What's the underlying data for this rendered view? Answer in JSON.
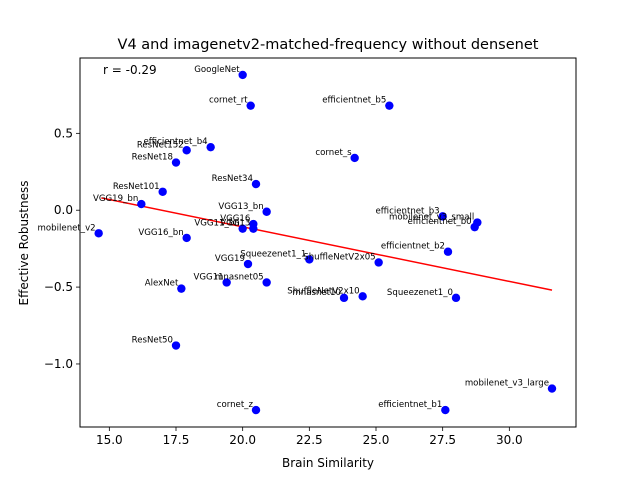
{
  "chart_data": {
    "type": "scatter",
    "title": "V4 and imagenetv2-matched-frequency without densenet",
    "xlabel": "Brain Similarity",
    "ylabel": "Effective Robustness",
    "annotation": "r = -0.29",
    "xlim": [
      13.9,
      32.5
    ],
    "ylim": [
      -1.41,
      0.99
    ],
    "xticks": [
      15.0,
      17.5,
      20.0,
      22.5,
      25.0,
      27.5,
      30.0
    ],
    "xtick_labels": [
      "15.0",
      "17.5",
      "20.0",
      "22.5",
      "25.0",
      "27.5",
      "30.0"
    ],
    "yticks": [
      -1.0,
      -0.5,
      0.0,
      0.5
    ],
    "ytick_labels": [
      "−1.0",
      "−0.5",
      "0.0",
      "0.5"
    ],
    "grid": false,
    "point_color": "#0000ff",
    "fit_color": "#ff0000",
    "fit_line": {
      "x": [
        14.7,
        31.6
      ],
      "y": [
        0.08,
        -0.52
      ]
    },
    "points": [
      {
        "label": "GoogleNet",
        "x": 20.0,
        "y": 0.88
      },
      {
        "label": "cornet_rt",
        "x": 20.3,
        "y": 0.68
      },
      {
        "label": "efficientnet_b5",
        "x": 25.5,
        "y": 0.68
      },
      {
        "label": "efficientnet_b4",
        "x": 18.8,
        "y": 0.41
      },
      {
        "label": "ResNet152",
        "x": 17.9,
        "y": 0.39
      },
      {
        "label": "ResNet18",
        "x": 17.5,
        "y": 0.31
      },
      {
        "label": "cornet_s",
        "x": 24.2,
        "y": 0.34
      },
      {
        "label": "ResNet34",
        "x": 20.5,
        "y": 0.17
      },
      {
        "label": "ResNet101",
        "x": 17.0,
        "y": 0.12
      },
      {
        "label": "VGG19_bn",
        "x": 16.2,
        "y": 0.04
      },
      {
        "label": "VGG13_bn",
        "x": 20.9,
        "y": -0.01
      },
      {
        "label": "efficientnet_b3",
        "x": 27.5,
        "y": -0.04
      },
      {
        "label": "mobilenet_v3_small",
        "x": 28.8,
        "y": -0.08
      },
      {
        "label": "efficientnet_b0",
        "x": 28.7,
        "y": -0.11
      },
      {
        "label": "VGG16",
        "x": 20.4,
        "y": -0.09
      },
      {
        "label": "VGG11_bn",
        "x": 20.0,
        "y": -0.12
      },
      {
        "label": "VGG13",
        "x": 20.4,
        "y": -0.12
      },
      {
        "label": "mobilenet_v2",
        "x": 14.6,
        "y": -0.15
      },
      {
        "label": "VGG16_bn",
        "x": 17.9,
        "y": -0.18
      },
      {
        "label": "efficientnet_b2",
        "x": 27.7,
        "y": -0.27
      },
      {
        "label": "Squeezenet1_1",
        "x": 22.5,
        "y": -0.32
      },
      {
        "label": "ShuffleNetV2x05",
        "x": 25.1,
        "y": -0.34
      },
      {
        "label": "VGG19",
        "x": 20.2,
        "y": -0.35
      },
      {
        "label": "VGG11",
        "x": 19.4,
        "y": -0.47
      },
      {
        "label": "mnasnet05",
        "x": 20.9,
        "y": -0.47
      },
      {
        "label": "AlexNet",
        "x": 17.7,
        "y": -0.51
      },
      {
        "label": "ShuffleNetV2x10",
        "x": 24.5,
        "y": -0.56
      },
      {
        "label": "mnasnet10",
        "x": 23.8,
        "y": -0.57
      },
      {
        "label": "Squeezenet1_0",
        "x": 28.0,
        "y": -0.57
      },
      {
        "label": "ResNet50",
        "x": 17.5,
        "y": -0.88
      },
      {
        "label": "mobilenet_v3_large",
        "x": 31.6,
        "y": -1.16
      },
      {
        "label": "cornet_z",
        "x": 20.5,
        "y": -1.3
      },
      {
        "label": "efficientnet_b1",
        "x": 27.6,
        "y": -1.3
      }
    ]
  }
}
